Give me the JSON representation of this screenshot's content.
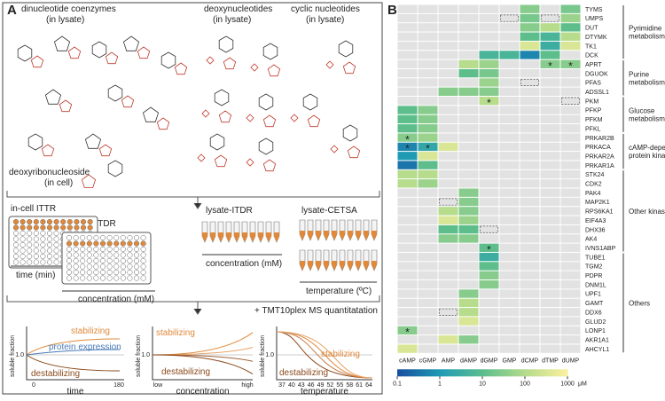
{
  "panel_a": {
    "label": "A",
    "structures": {
      "dinucleotide": [
        "dinucleotide coenzymes",
        "(in lysate)"
      ],
      "deoxynucleotides": [
        "deoxynucleotides",
        "(in lysate)"
      ],
      "cyclic": [
        "cyclic nucleotides",
        "(in lysate)"
      ],
      "deoxyribonucleoside": [
        "deoxyribonucleoside",
        "(in cell)"
      ]
    },
    "methods": {
      "ittr": "in-cell ITTR",
      "itdr": "in-cell-ITDR",
      "ittr_axis": "time (min)",
      "itdr_axis": "concentration (mM)",
      "lysate_itdr": "lysate-ITDR",
      "lysate_itdr_axis": "concentration (mM)",
      "cetsa": "lysate-CETSA",
      "cetsa_axis": "temperature (ºC)",
      "ms": "+ TMT10plex MS quantitatation"
    },
    "plots": [
      {
        "stabilizing": "stabilizing",
        "middle": "protein expression",
        "destabilizing": "destabilizing",
        "ylabel": "soluble fraction",
        "yref": "1.0",
        "xticks": [
          "0",
          "180"
        ],
        "xlabel": "time"
      },
      {
        "stabilizing": "stabilizing",
        "destabilizing": "destabilizing",
        "ylabel": "soluble fraction",
        "yref": "1.0",
        "xticks": [
          "low",
          "high"
        ],
        "xlabel": "concentration"
      },
      {
        "stabilizing": "stabilizing",
        "destabilizing": "destabilizing",
        "ylabel": "soluble fraction",
        "yref": "1.0",
        "xticks": [
          37,
          40,
          43,
          46,
          49,
          52,
          55,
          58,
          61,
          64
        ],
        "xlabel": "temperature"
      }
    ]
  },
  "panel_b": {
    "label": "B",
    "columns": [
      "cAMP",
      "cGMP",
      "AMP",
      "dAMP",
      "dGMP",
      "GMP",
      "dCMP",
      "dTMP",
      "dUMP"
    ],
    "rows": [
      {
        "gene": "TYMS",
        "values": [
          null,
          null,
          null,
          null,
          null,
          null,
          30,
          null,
          20
        ]
      },
      {
        "gene": "UMPS",
        "values": [
          null,
          null,
          null,
          null,
          null,
          null,
          20,
          null,
          50
        ]
      },
      {
        "gene": "DUT",
        "values": [
          null,
          null,
          null,
          null,
          null,
          null,
          30,
          100,
          10
        ]
      },
      {
        "gene": "DTYMK",
        "values": [
          null,
          null,
          null,
          null,
          null,
          null,
          10,
          5,
          100
        ]
      },
      {
        "gene": "TK1",
        "values": [
          null,
          null,
          null,
          null,
          null,
          null,
          300,
          3,
          300
        ]
      },
      {
        "gene": "DCK",
        "values": [
          null,
          null,
          null,
          null,
          5,
          5,
          0.5,
          10,
          null
        ]
      },
      {
        "gene": "APRT",
        "values": [
          null,
          null,
          null,
          100,
          50,
          null,
          null,
          30,
          30
        ]
      },
      {
        "gene": "DGUOK",
        "values": [
          null,
          null,
          null,
          10,
          20,
          null,
          null,
          null,
          null
        ]
      },
      {
        "gene": "PFAS",
        "values": [
          null,
          null,
          null,
          null,
          50,
          null,
          null,
          null,
          null
        ]
      },
      {
        "gene": "ADSSL1",
        "values": [
          null,
          null,
          30,
          30,
          30,
          null,
          null,
          null,
          null
        ]
      },
      {
        "gene": "PKM",
        "values": [
          null,
          null,
          null,
          null,
          100,
          null,
          null,
          null,
          null
        ]
      },
      {
        "gene": "PFKP",
        "values": [
          10,
          30,
          null,
          null,
          null,
          null,
          null,
          null,
          null
        ]
      },
      {
        "gene": "PFKM",
        "values": [
          10,
          30,
          null,
          null,
          null,
          null,
          null,
          null,
          null
        ]
      },
      {
        "gene": "PFKL",
        "values": [
          10,
          30,
          null,
          null,
          null,
          null,
          null,
          null,
          null
        ]
      },
      {
        "gene": "PRKAR2B",
        "values": [
          30,
          50,
          null,
          null,
          null,
          null,
          null,
          null,
          null
        ]
      },
      {
        "gene": "PRKACA",
        "values": [
          0.5,
          2,
          300,
          null,
          null,
          null,
          null,
          null,
          null
        ]
      },
      {
        "gene": "PRKAR2A",
        "values": [
          1,
          300,
          null,
          null,
          null,
          null,
          null,
          null,
          null
        ]
      },
      {
        "gene": "PRKAR1A",
        "values": [
          0.3,
          10,
          null,
          null,
          null,
          null,
          null,
          null,
          null
        ]
      },
      {
        "gene": "STK24",
        "values": [
          100,
          100,
          null,
          null,
          null,
          null,
          null,
          null,
          null
        ]
      },
      {
        "gene": "CDK2",
        "values": [
          100,
          50,
          null,
          null,
          null,
          null,
          null,
          null,
          null
        ]
      },
      {
        "gene": "PAK4",
        "values": [
          null,
          null,
          null,
          30,
          null,
          null,
          null,
          null,
          null
        ]
      },
      {
        "gene": "MAP2K1",
        "values": [
          null,
          null,
          null,
          30,
          null,
          null,
          null,
          null,
          null
        ]
      },
      {
        "gene": "RPS6KA1",
        "values": [
          null,
          null,
          100,
          30,
          null,
          null,
          null,
          null,
          null
        ]
      },
      {
        "gene": "EIF4A3",
        "values": [
          null,
          null,
          300,
          50,
          null,
          null,
          null,
          null,
          null
        ]
      },
      {
        "gene": "DHX36",
        "values": [
          null,
          null,
          10,
          10,
          null,
          null,
          null,
          null,
          null
        ]
      },
      {
        "gene": "AK4",
        "values": [
          null,
          null,
          30,
          30,
          null,
          null,
          null,
          null,
          null
        ]
      },
      {
        "gene": "IVNS1ABP",
        "values": [
          null,
          null,
          null,
          null,
          10,
          null,
          null,
          null,
          null
        ]
      },
      {
        "gene": "TUBE1",
        "values": [
          null,
          null,
          null,
          null,
          3,
          null,
          null,
          null,
          null
        ]
      },
      {
        "gene": "TGM2",
        "values": [
          null,
          null,
          null,
          null,
          10,
          null,
          null,
          null,
          null
        ]
      },
      {
        "gene": "PDPR",
        "values": [
          null,
          null,
          null,
          null,
          30,
          null,
          null,
          null,
          null
        ]
      },
      {
        "gene": "DNM1L",
        "values": [
          null,
          null,
          null,
          null,
          30,
          null,
          null,
          null,
          null
        ]
      },
      {
        "gene": "UPF1",
        "values": [
          null,
          null,
          null,
          30,
          null,
          null,
          null,
          null,
          null
        ]
      },
      {
        "gene": "GAMT",
        "values": [
          null,
          null,
          null,
          100,
          null,
          null,
          null,
          null,
          null
        ]
      },
      {
        "gene": "DDX6",
        "values": [
          null,
          null,
          null,
          100,
          null,
          null,
          null,
          null,
          null
        ]
      },
      {
        "gene": "GLUD2",
        "values": [
          null,
          null,
          null,
          300,
          null,
          null,
          null,
          null,
          null
        ]
      },
      {
        "gene": "LONP1",
        "values": [
          30,
          null,
          null,
          null,
          null,
          null,
          null,
          null,
          null
        ]
      },
      {
        "gene": "AKR1A1",
        "values": [
          null,
          null,
          300,
          30,
          null,
          null,
          null,
          null,
          null
        ]
      },
      {
        "gene": "AHCYL1",
        "values": [
          300,
          null,
          null,
          null,
          null,
          null,
          null,
          null,
          null
        ]
      }
    ],
    "star_text": "*",
    "stars": [
      [
        6,
        7
      ],
      [
        6,
        8
      ],
      [
        10,
        4
      ],
      [
        14,
        0
      ],
      [
        15,
        0
      ],
      [
        15,
        1
      ],
      [
        26,
        4
      ],
      [
        35,
        0
      ]
    ],
    "dashed": [
      [
        1,
        5
      ],
      [
        1,
        7
      ],
      [
        8,
        6
      ],
      [
        10,
        8
      ],
      [
        21,
        2
      ],
      [
        24,
        4
      ],
      [
        33,
        2
      ]
    ],
    "groups": [
      {
        "name": [
          "Pyrimidine",
          "metabolism"
        ],
        "rows": [
          0,
          5
        ]
      },
      {
        "name": [
          "Purine",
          "metabolism"
        ],
        "rows": [
          6,
          9
        ]
      },
      {
        "name": [
          "Glucose",
          "metabolism"
        ],
        "rows": [
          10,
          13
        ]
      },
      {
        "name": [
          "cAMP-dependent",
          "protein kinase A"
        ],
        "rows": [
          14,
          17
        ]
      },
      {
        "name": [
          "Other kinases"
        ],
        "rows": [
          18,
          26
        ]
      },
      {
        "name": [
          "Others"
        ],
        "rows": [
          27,
          37
        ]
      }
    ],
    "colorbar": {
      "range": [
        0.1,
        1000
      ],
      "ticks": [
        0.1,
        1,
        10,
        100,
        1000
      ],
      "unit": "μM",
      "log": true
    }
  }
}
